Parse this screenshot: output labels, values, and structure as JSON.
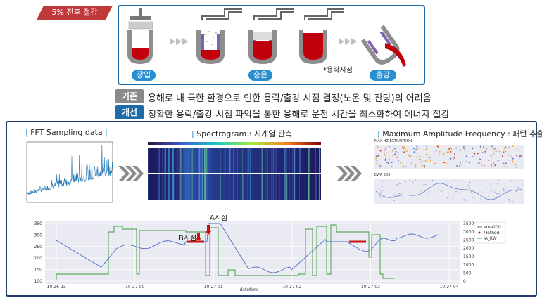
{
  "badge": "5% 전후 절감",
  "stages": {
    "load": "장입",
    "heat": "승온",
    "melt_point": "*용락시점",
    "tap": "출강"
  },
  "rows": [
    {
      "tag": "기존",
      "tag_color": "#8a8a8a",
      "text": "용해로 내 극한 환경으로 인한 용락/출강 시점 결정(노온 및 잔탕)의 어려움"
    },
    {
      "tag": "개선",
      "tag_color": "#1f6ba8",
      "text": "정확한 용락/출강 시점 파악을 통한 용해로 운전 시간을 최소화하여 에너지 절감"
    }
  ],
  "sections": {
    "fft": "FFT Sampling data",
    "spectrogram": "Spectrogram : 시계열 관측",
    "maxamp": "Maximum Amplitude Frequency : 패턴 추출",
    "maxamp_sub1": "MAX HZ EXTRACTION",
    "maxamp_sub2": "EWA 200"
  },
  "bottom_chart": {
    "point_a": "A시점",
    "point_b": "B시점",
    "xlabel": "datetime",
    "x_ticks": [
      "10-26 23",
      "10-27 00",
      "10-27 01",
      "10-27 02",
      "10-27 03",
      "10-27 04"
    ],
    "y_left_ticks": [
      "350",
      "300",
      "250",
      "200",
      "150",
      "100"
    ],
    "y_right_ticks": [
      "3500",
      "3000",
      "2500",
      "2000",
      "1500",
      "1000",
      "500",
      "0"
    ],
    "legend": [
      "ema200",
      "Method",
      "IA_KW"
    ],
    "colors": {
      "blue": "#4a6fc2",
      "green": "#3c9a3c",
      "red": "#cc1111"
    }
  }
}
